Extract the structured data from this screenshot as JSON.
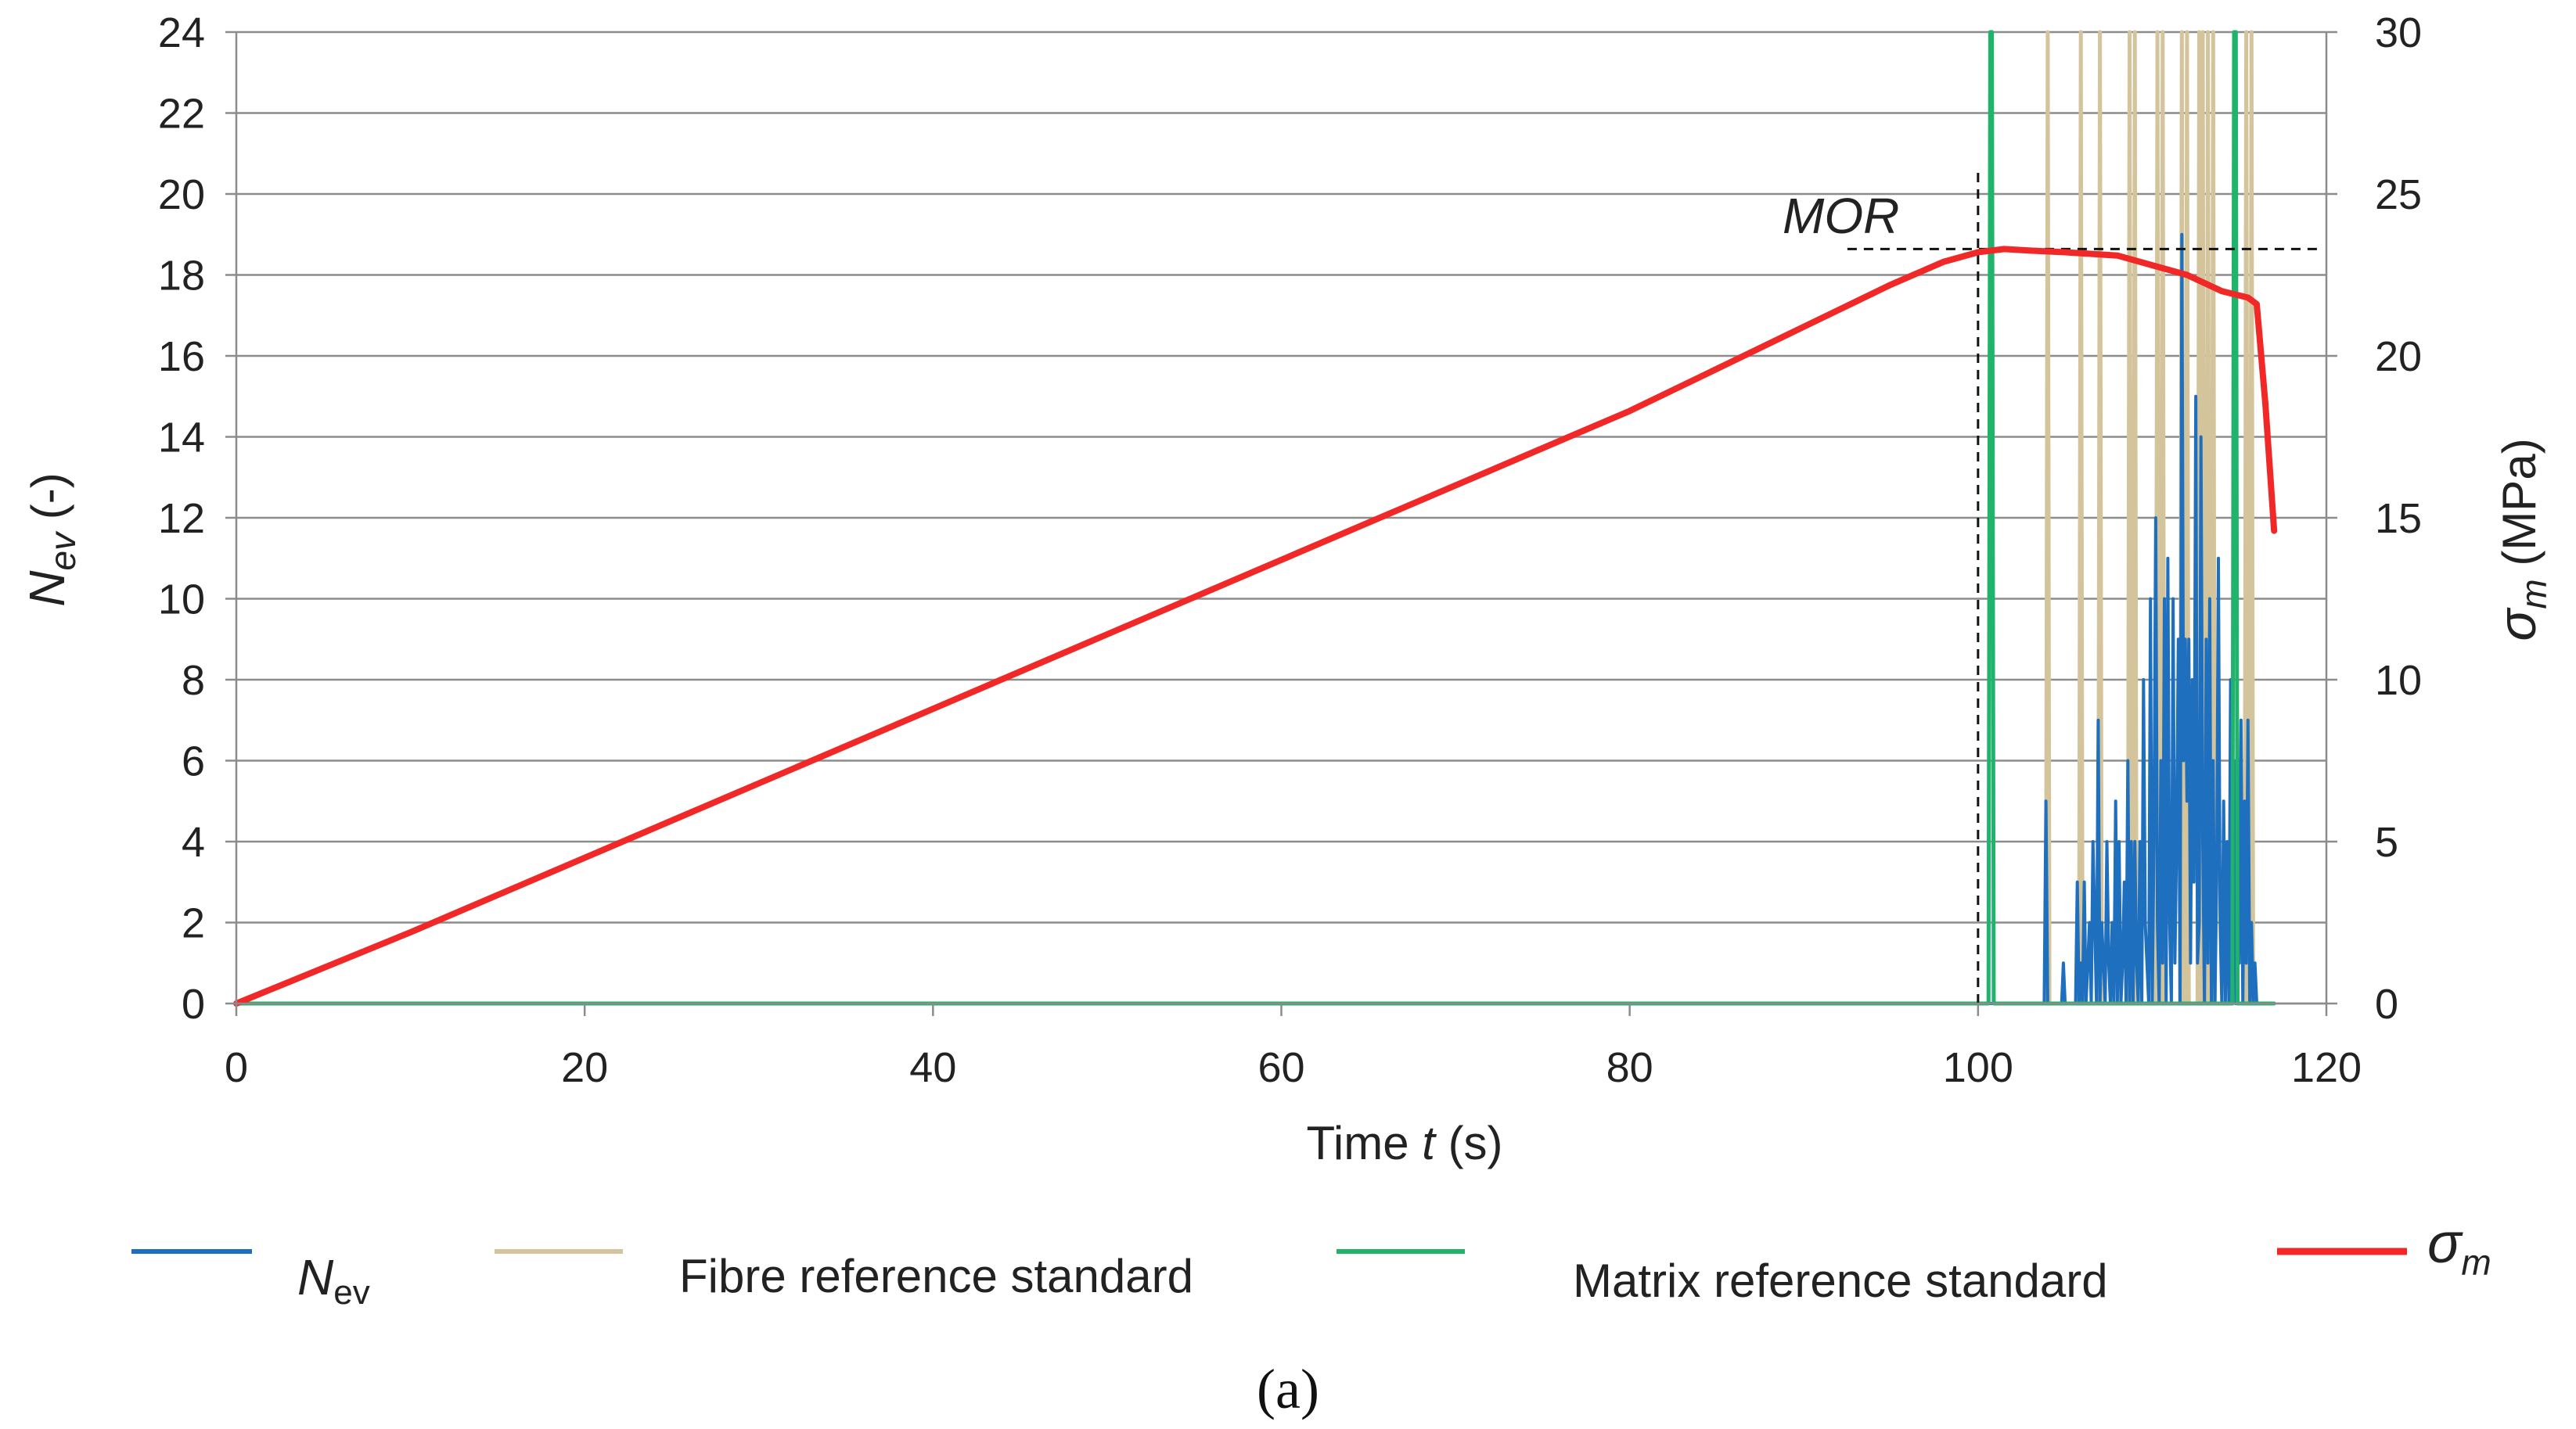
{
  "chart_data": {
    "type": "line",
    "subfigure_label": "(a)",
    "xlabel": {
      "prefix": "Time ",
      "var": "t",
      "suffix": " (s)"
    },
    "ylabel_left": {
      "var": "N",
      "sub": "ev",
      "suffix": " (-)"
    },
    "ylabel_right": {
      "var": "σ",
      "sub": "m",
      "suffix": " (MPa)"
    },
    "xlim": [
      0,
      120
    ],
    "ylim_left": [
      0,
      24
    ],
    "ylim_right": [
      0,
      30
    ],
    "x_ticks": [
      "0",
      "20",
      "40",
      "60",
      "80",
      "100",
      "120"
    ],
    "y_left_ticks": [
      "0",
      "2",
      "4",
      "6",
      "8",
      "10",
      "12",
      "14",
      "16",
      "18",
      "20",
      "22",
      "24"
    ],
    "y_right_ticks": [
      "0",
      "5",
      "10",
      "15",
      "20",
      "25",
      "30"
    ],
    "grid": "horizontal",
    "annotation": {
      "text": "MOR",
      "x": 100,
      "y": 23.3
    },
    "legend": [
      {
        "key": "nev",
        "prefix": "N",
        "sub": "ev",
        "color": "#1f6fbf"
      },
      {
        "key": "fibre",
        "label": "Fibre reference standard",
        "color": "#d4c49c"
      },
      {
        "key": "matrix",
        "label": "Matrix reference standard",
        "color": "#1fb36b"
      },
      {
        "key": "sigma",
        "prefix": "σ",
        "sub": "m",
        "color": "#f02828"
      }
    ],
    "series": [
      {
        "name": "sigma_m",
        "axis": "right",
        "color": "#f02828",
        "x": [
          0,
          10,
          20,
          30,
          40,
          50,
          60,
          70,
          80,
          85,
          90,
          95,
          98,
          100,
          101.5,
          103,
          105,
          108,
          110,
          112,
          114,
          115.5,
          116,
          116.5,
          117
        ],
        "y": [
          0,
          2.2,
          4.5,
          6.8,
          9.1,
          11.4,
          13.7,
          16.0,
          18.3,
          19.6,
          20.9,
          22.2,
          22.9,
          23.2,
          23.3,
          23.25,
          23.2,
          23.1,
          22.8,
          22.5,
          22.0,
          21.8,
          21.6,
          18.5,
          14.6
        ]
      },
      {
        "name": "Fibre reference standard",
        "axis": "left",
        "color": "#d4c49c",
        "x": [
          103.9,
          104.0,
          104.1,
          105.8,
          105.9,
          106.0,
          106.9,
          107.0,
          107.1,
          108.6,
          108.7,
          108.8,
          108.9,
          109.0,
          109.1,
          110.2,
          110.3,
          110.4,
          110.5,
          110.6,
          110.7,
          111.6,
          111.7,
          111.8,
          111.9,
          112.0,
          112.1,
          112.6,
          112.7,
          112.8,
          112.9,
          113.0,
          113.1,
          113.2,
          113.3,
          113.4,
          113.5,
          113.6,
          113.7,
          115.3,
          115.4,
          115.5,
          115.6,
          115.7,
          115.8,
          115.9,
          116.0
        ],
        "y": [
          0,
          24,
          0,
          0,
          24,
          0,
          0,
          24,
          0,
          0,
          24,
          0,
          0,
          24,
          0,
          0,
          24,
          0,
          0,
          24,
          0,
          0,
          24,
          0,
          0,
          24,
          0,
          0,
          24,
          0,
          24,
          0,
          0,
          24,
          0,
          0,
          24,
          0,
          0,
          0,
          24,
          0,
          0,
          24,
          0,
          0,
          0
        ]
      },
      {
        "name": "Matrix reference standard",
        "axis": "left",
        "color": "#1fb36b",
        "x": [
          0,
          100.5,
          100.6,
          100.7,
          100.8,
          100.9,
          114.5,
          114.6,
          114.7,
          114.8,
          114.9,
          117
        ],
        "y": [
          0,
          0,
          0,
          24,
          24,
          0,
          0,
          0,
          24,
          24,
          0,
          0
        ]
      },
      {
        "name": "N_ev",
        "axis": "left",
        "color": "#1f6fbf",
        "x": [
          100.4,
          103.8,
          103.9,
          104.0,
          104.2,
          104.8,
          104.9,
          105.0,
          105.6,
          105.7,
          105.8,
          105.9,
          106.0,
          106.1,
          106.2,
          106.3,
          106.4,
          106.5,
          106.6,
          106.8,
          106.9,
          107.0,
          107.1,
          107.2,
          107.3,
          107.4,
          107.5,
          107.6,
          107.7,
          107.8,
          107.9,
          108.0,
          108.1,
          108.2,
          108.3,
          108.4,
          108.5,
          108.6,
          108.7,
          108.8,
          108.9,
          109.0,
          109.1,
          109.2,
          109.3,
          109.4,
          109.5,
          109.6,
          109.7,
          109.8,
          109.9,
          110.0,
          110.1,
          110.2,
          110.3,
          110.4,
          110.5,
          110.6,
          110.7,
          110.8,
          110.9,
          111.0,
          111.1,
          111.2,
          111.3,
          111.4,
          111.5,
          111.6,
          111.7,
          111.8,
          111.9,
          112.0,
          112.1,
          112.2,
          112.3,
          112.4,
          112.5,
          112.6,
          112.7,
          112.8,
          112.9,
          113.0,
          113.1,
          113.2,
          113.3,
          113.4,
          113.5,
          113.6,
          113.7,
          113.8,
          113.9,
          114.0,
          114.1,
          114.2,
          114.3,
          114.4,
          114.5,
          114.6,
          114.7,
          114.8,
          114.9,
          115.0,
          115.1,
          115.2,
          115.3,
          115.4,
          115.5,
          115.6,
          115.7,
          115.8,
          115.9,
          116.0,
          116.1,
          116.3
        ],
        "y": [
          0,
          0,
          5,
          0,
          0,
          0,
          1,
          0,
          0,
          3,
          0,
          1,
          0,
          3,
          0,
          1,
          2,
          0,
          4,
          0,
          7,
          0,
          2,
          1,
          0,
          4,
          1,
          0,
          2,
          0,
          5,
          0,
          4,
          0,
          1,
          3,
          0,
          6,
          0,
          4,
          0,
          4,
          1,
          0,
          4,
          0,
          8,
          2,
          1,
          0,
          10,
          0,
          4,
          12,
          2,
          0,
          6,
          1,
          10,
          0,
          11,
          2,
          0,
          10,
          1,
          4,
          9,
          0,
          19,
          6,
          9,
          5,
          9,
          1,
          8,
          3,
          15,
          1,
          2,
          14,
          4,
          0,
          9,
          1,
          10,
          0,
          6,
          0,
          3,
          11,
          2,
          0,
          5,
          0,
          4,
          0,
          8,
          1,
          6,
          0,
          3,
          1,
          7,
          0,
          5,
          1,
          7,
          0,
          2,
          0,
          1,
          0,
          0,
          0
        ]
      }
    ]
  }
}
